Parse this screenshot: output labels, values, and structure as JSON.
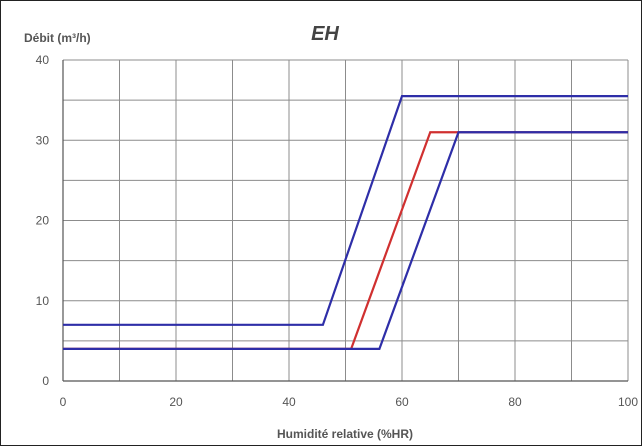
{
  "chart_data": {
    "type": "line",
    "title": "EH",
    "ylabel": "Débit (m³/h)",
    "xlabel": "Humidité relative (%HR)",
    "xlim": [
      0,
      100
    ],
    "ylim": [
      0,
      40
    ],
    "x_ticks": [
      0,
      20,
      40,
      60,
      80,
      100
    ],
    "y_ticks": [
      0,
      10,
      20,
      30,
      40
    ],
    "grid": true,
    "legend": "none",
    "series": [
      {
        "color": "#2e2ea8",
        "points": [
          [
            0,
            7
          ],
          [
            46,
            7
          ],
          [
            60,
            35.5
          ],
          [
            100,
            35.5
          ]
        ]
      },
      {
        "color": "#d03030",
        "points": [
          [
            0,
            4
          ],
          [
            51,
            4
          ],
          [
            65,
            31
          ],
          [
            100,
            31
          ]
        ]
      },
      {
        "color": "#2e2ea8",
        "points": [
          [
            0,
            4
          ],
          [
            56,
            4
          ],
          [
            70,
            31
          ],
          [
            100,
            31
          ]
        ]
      }
    ]
  }
}
